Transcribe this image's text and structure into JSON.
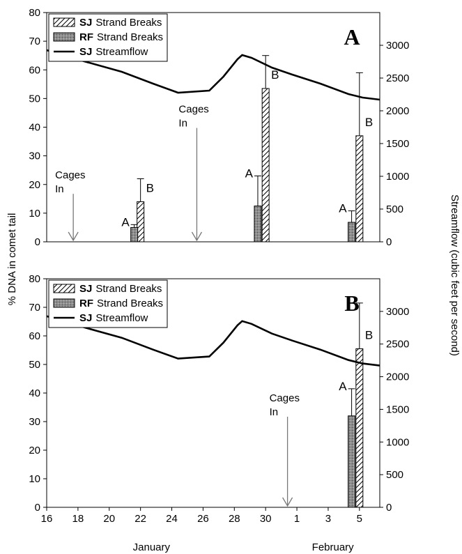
{
  "chart_data": [
    {
      "type": "combo",
      "panel_label": "A",
      "ylabel": "% DNA in comet tail",
      "y2label": "Streamflow (cubic feet per second)",
      "xlim": [
        16,
        37.3
      ],
      "ylim": [
        0,
        80
      ],
      "yticks": [
        0,
        10,
        20,
        30,
        40,
        50,
        60,
        70,
        80
      ],
      "y2lim": [
        0,
        3500
      ],
      "y2ticks": [
        0,
        500,
        1000,
        1500,
        2000,
        2500,
        3000
      ],
      "legend": "upper left",
      "series": [
        {
          "site": "SJ",
          "name": "Strand Breaks",
          "style": "hatch",
          "color": "#000000",
          "x": [
            22,
            30,
            36
          ],
          "values": [
            14,
            53.5,
            37
          ],
          "errors": [
            8,
            11.5,
            22
          ],
          "labels": [
            "B",
            "B",
            "B"
          ]
        },
        {
          "site": "RF",
          "name": "Strand Breaks",
          "style": "stipple",
          "color": "#8c8c8c",
          "x": [
            21.6,
            29.5,
            35.5
          ],
          "values": [
            5,
            12.5,
            6.8
          ],
          "errors": [
            1,
            10.5,
            4
          ],
          "labels": [
            "A",
            "A",
            "A"
          ]
        },
        {
          "site": "SJ",
          "name": "Streamflow",
          "style": "line",
          "axis": "y2",
          "color": "#000000",
          "x": [
            16,
            18.4,
            20.8,
            22.8,
            24.4,
            26.4,
            27.3,
            28.2,
            28.5,
            29.1,
            30.4,
            31.7,
            33.5,
            35.3,
            36.2,
            37.3
          ],
          "values": [
            2926,
            2755,
            2596,
            2415,
            2277,
            2309,
            2521,
            2787,
            2851,
            2809,
            2660,
            2553,
            2415,
            2255,
            2202,
            2170
          ]
        }
      ],
      "annotations": [
        {
          "lines": [
            "Cages",
            "In"
          ],
          "x": 17.7,
          "y": 25
        },
        {
          "lines": [
            "Cages",
            "In"
          ],
          "x": 25.6,
          "y": 48
        }
      ]
    },
    {
      "type": "combo",
      "panel_label": "B",
      "xlim": [
        16,
        37.3
      ],
      "ylim": [
        0,
        80
      ],
      "yticks": [
        0,
        10,
        20,
        30,
        40,
        50,
        60,
        70,
        80
      ],
      "y2lim": [
        0,
        3500
      ],
      "y2ticks": [
        0,
        500,
        1000,
        1500,
        2000,
        2500,
        3000
      ],
      "legend": "upper left",
      "xticks": [
        16,
        18,
        20,
        22,
        24,
        26,
        28,
        30,
        {
          "value": 32,
          "label": "1"
        },
        {
          "value": 34,
          "label": "3"
        },
        {
          "value": 36,
          "label": "5"
        }
      ],
      "x_group_labels": [
        {
          "label": "January",
          "x": 22.7
        },
        {
          "label": "February",
          "x": 34.3
        }
      ],
      "series": [
        {
          "site": "SJ",
          "name": "Strand Breaks",
          "style": "hatch",
          "color": "#000000",
          "x": [
            36
          ],
          "values": [
            55.5
          ],
          "errors": [
            16
          ],
          "labels": [
            "B"
          ]
        },
        {
          "site": "RF",
          "name": "Strand Breaks",
          "style": "stipple",
          "color": "#8c8c8c",
          "x": [
            35.5
          ],
          "values": [
            32
          ],
          "errors": [
            9.5
          ],
          "labels": [
            "A"
          ]
        },
        {
          "site": "SJ",
          "name": "Streamflow",
          "style": "line",
          "axis": "y2",
          "color": "#000000",
          "x": [
            16,
            18.4,
            20.8,
            22.8,
            24.4,
            26.4,
            27.3,
            28.2,
            28.5,
            29.1,
            30.4,
            31.7,
            33.5,
            35.3,
            36.2,
            37.3
          ],
          "values": [
            2926,
            2755,
            2596,
            2415,
            2277,
            2309,
            2521,
            2787,
            2851,
            2809,
            2660,
            2553,
            2415,
            2255,
            2202,
            2170
          ]
        }
      ],
      "annotations": [
        {
          "lines": [
            "Cages",
            "In"
          ],
          "x": 31.4,
          "y": 40
        }
      ]
    }
  ]
}
